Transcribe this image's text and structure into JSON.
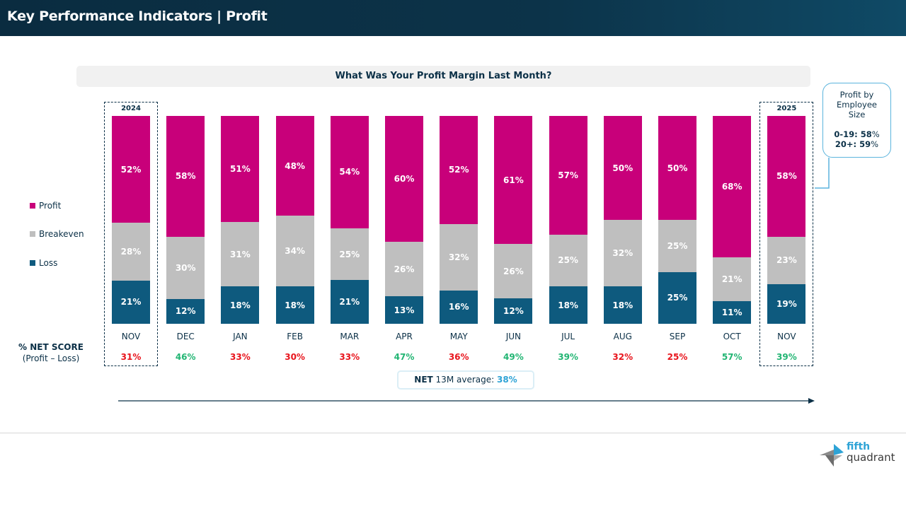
{
  "header": {
    "title": "Key Performance Indicators | Profit"
  },
  "chart_data": {
    "type": "bar",
    "stacked": true,
    "title": "What Was Your Profit Margin Last Month?",
    "categories": [
      "NOV",
      "DEC",
      "JAN",
      "FEB",
      "MAR",
      "APR",
      "MAY",
      "JUN",
      "JUL",
      "AUG",
      "SEP",
      "OCT",
      "NOV"
    ],
    "series": [
      {
        "name": "Loss",
        "color": "#0e5a7e",
        "values": [
          21,
          12,
          18,
          18,
          21,
          13,
          16,
          12,
          18,
          18,
          25,
          11,
          19
        ]
      },
      {
        "name": "Breakeven",
        "color": "#bfbfbf",
        "values": [
          28,
          30,
          31,
          34,
          25,
          26,
          32,
          26,
          25,
          32,
          25,
          21,
          23
        ]
      },
      {
        "name": "Profit",
        "color": "#c8007a",
        "values": [
          52,
          58,
          51,
          48,
          54,
          60,
          52,
          61,
          57,
          50,
          50,
          68,
          58
        ]
      }
    ],
    "legend_order": [
      "Profit",
      "Breakeven",
      "Loss"
    ],
    "legend_placement": "left",
    "year_labels": [
      {
        "label": "2024",
        "index": 0
      },
      {
        "label": "2025",
        "index": 12
      }
    ],
    "net_score": {
      "label": "% NET SCORE",
      "sublabel": "(Profit – Loss)",
      "values": [
        "31%",
        "46%",
        "33%",
        "30%",
        "33%",
        "47%",
        "36%",
        "49%",
        "39%",
        "32%",
        "25%",
        "57%",
        "39%"
      ],
      "status": [
        "below",
        "above",
        "below",
        "below",
        "below",
        "above",
        "below",
        "above",
        "above",
        "below",
        "below",
        "above",
        "above"
      ],
      "colors": {
        "above": "#22b573",
        "below": "#e8141c"
      }
    },
    "average": {
      "prefix": "NET",
      "text": "13M average:",
      "value": "38%",
      "value_color": "#2ea3d6"
    }
  },
  "callout": {
    "title": "Profit by Employee Size",
    "line1_label": "0-19:",
    "line1_value": "58",
    "line2_label": "20+:",
    "line2_value": "59",
    "pct": "%"
  },
  "logo": {
    "text1": "fifth",
    "text2": "quadrant"
  }
}
